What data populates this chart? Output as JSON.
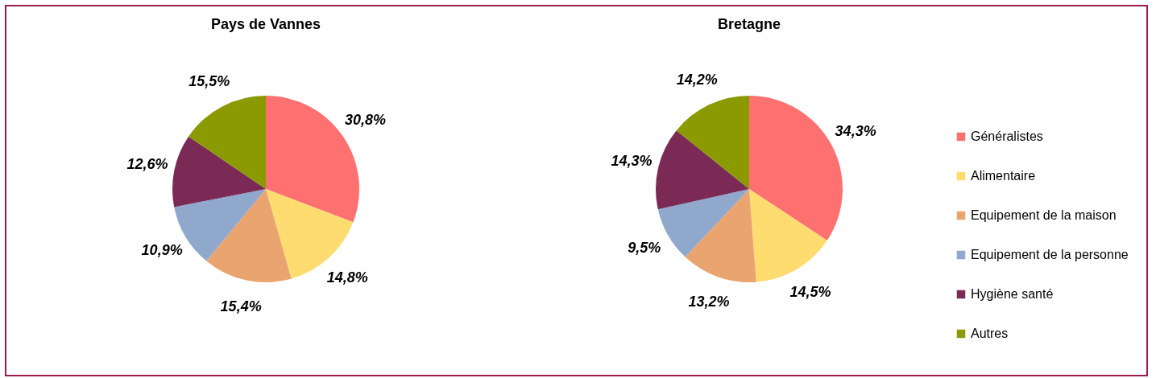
{
  "chart_data": [
    {
      "type": "pie",
      "title": "Pays de Vannes",
      "categories": [
        null,
        null,
        null,
        null,
        null,
        null
      ],
      "values": [
        30.8,
        14.8,
        15.4,
        10.9,
        12.6,
        15.5
      ],
      "value_labels": [
        "30,8%",
        "14,8%",
        "15,4%",
        "10,9%",
        "12,6%",
        "15,5%"
      ],
      "colors": [
        "#ff7070",
        "#ffdc70",
        "#eaa470",
        "#8fa8cc",
        "#7a2a55",
        "#8a9a00"
      ],
      "legend": false
    },
    {
      "type": "pie",
      "title": "Bretagne",
      "categories": [
        "Généralistes",
        "Alimentaire",
        "Equipement de la maison",
        "Equipement de la personne",
        "Hygiène santé",
        "Autres"
      ],
      "values": [
        34.3,
        14.5,
        13.2,
        9.5,
        14.3,
        14.2
      ],
      "value_labels": [
        "34,3%",
        "14,5%",
        "13,2%",
        "9,5%",
        "14,3%",
        "14,2%"
      ],
      "colors": [
        "#ff7070",
        "#ffdc70",
        "#eaa470",
        "#8fa8cc",
        "#7a2a55",
        "#8a9a00"
      ],
      "legend": "right"
    }
  ]
}
